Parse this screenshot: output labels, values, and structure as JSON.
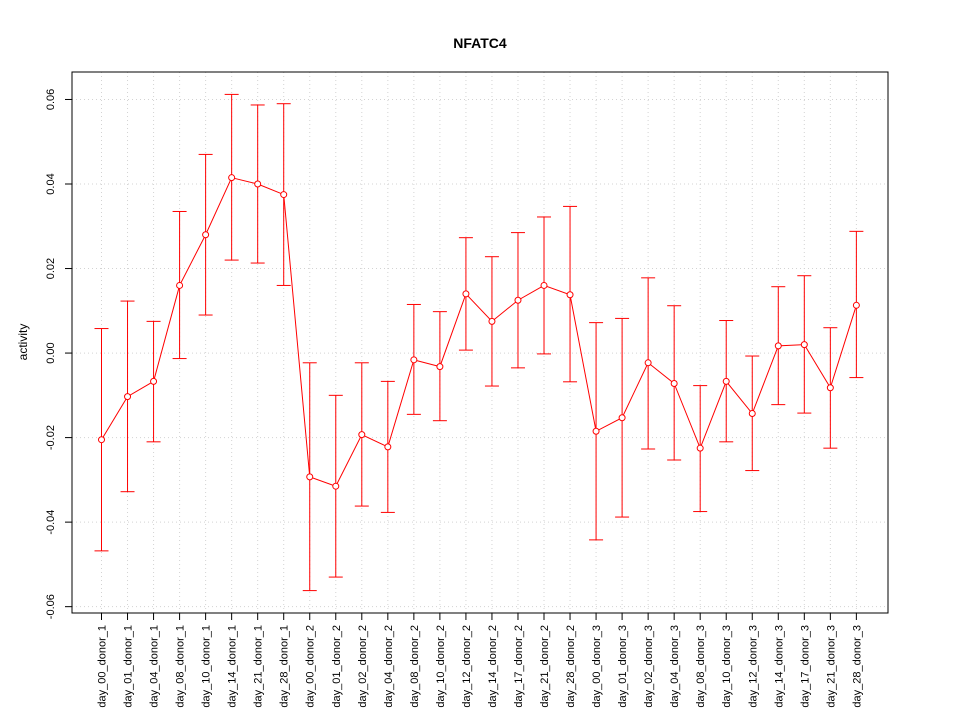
{
  "chart_data": {
    "type": "line",
    "title": "NFATC4",
    "xlabel": "",
    "ylabel": "activity",
    "ylim": [
      -0.0615,
      0.0665
    ],
    "yticks": [
      -0.06,
      -0.04,
      -0.02,
      0.0,
      0.02,
      0.04,
      0.06
    ],
    "ytick_labels": [
      "-0.06",
      "-0.04",
      "-0.02",
      "0.00",
      "0.02",
      "0.04",
      "0.06"
    ],
    "grid": true,
    "series_color": "#ff0000",
    "categories": [
      "day_00_donor_1",
      "day_01_donor_1",
      "day_04_donor_1",
      "day_08_donor_1",
      "day_10_donor_1",
      "day_14_donor_1",
      "day_21_donor_1",
      "day_28_donor_1",
      "day_00_donor_2",
      "day_01_donor_2",
      "day_02_donor_2",
      "day_04_donor_2",
      "day_08_donor_2",
      "day_10_donor_2",
      "day_12_donor_2",
      "day_14_donor_2",
      "day_17_donor_2",
      "day_21_donor_2",
      "day_28_donor_2",
      "day_00_donor_3",
      "day_01_donor_3",
      "day_02_donor_3",
      "day_04_donor_3",
      "day_08_donor_3",
      "day_10_donor_3",
      "day_12_donor_3",
      "day_14_donor_3",
      "day_17_donor_3",
      "day_21_donor_3",
      "day_28_donor_3"
    ],
    "values": [
      -0.0205,
      -0.0103,
      -0.0067,
      0.016,
      0.028,
      0.0415,
      0.04,
      0.0375,
      -0.0293,
      -0.0315,
      -0.0193,
      -0.0222,
      -0.0016,
      -0.0032,
      0.014,
      0.0075,
      0.0125,
      0.016,
      0.0138,
      -0.0185,
      -0.0153,
      -0.0023,
      -0.0072,
      -0.0225,
      -0.0067,
      -0.0143,
      0.0017,
      0.002,
      -0.0082,
      0.0113
    ],
    "upper": [
      0.0058,
      0.0123,
      0.0075,
      0.0335,
      0.047,
      0.0612,
      0.0587,
      0.059,
      -0.0023,
      -0.01,
      -0.0023,
      -0.0067,
      0.0115,
      0.0098,
      0.0273,
      0.0228,
      0.0285,
      0.0322,
      0.0347,
      0.0072,
      0.0082,
      0.0178,
      0.0112,
      -0.0077,
      0.0077,
      -0.0007,
      0.0157,
      0.0183,
      0.006,
      0.0288
    ],
    "lower": [
      -0.0468,
      -0.0328,
      -0.021,
      -0.0013,
      0.009,
      0.022,
      0.0213,
      0.016,
      -0.0562,
      -0.053,
      -0.0362,
      -0.0377,
      -0.0145,
      -0.016,
      0.0007,
      -0.0078,
      -0.0035,
      -0.0002,
      -0.0068,
      -0.0442,
      -0.0388,
      -0.0227,
      -0.0253,
      -0.0375,
      -0.021,
      -0.0278,
      -0.0122,
      -0.0142,
      -0.0225,
      -0.0058
    ]
  }
}
